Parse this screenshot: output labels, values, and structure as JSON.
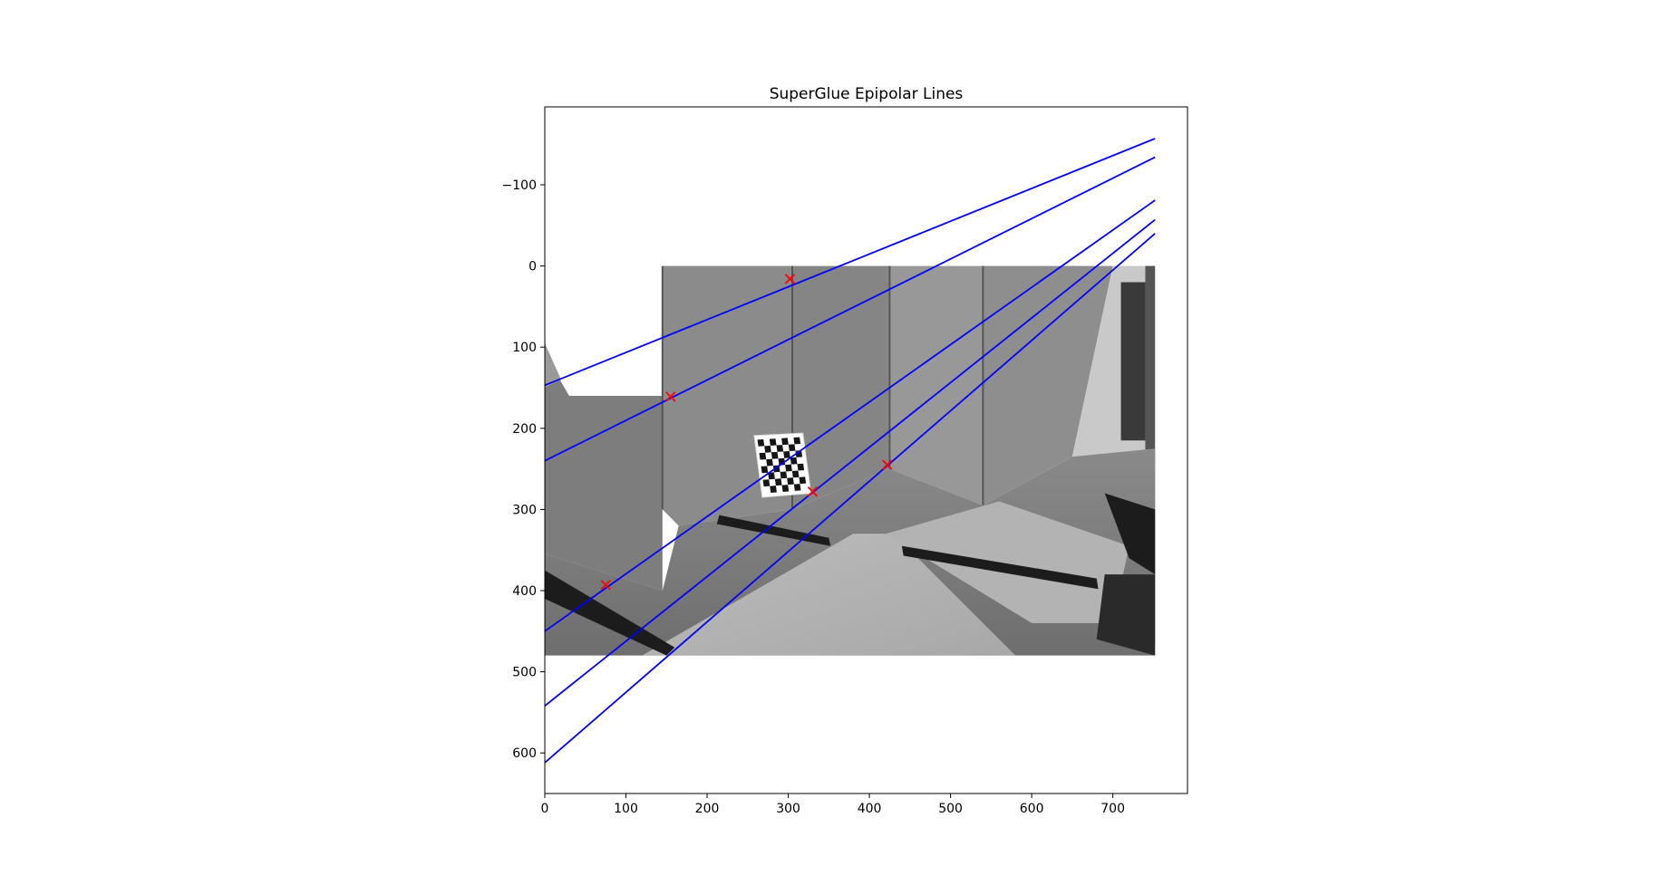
{
  "chart_data": {
    "type": "image_with_lines",
    "title": "SuperGlue Epipolar Lines",
    "xlabel": "",
    "ylabel": "",
    "xlim": [
      0,
      792
    ],
    "ylim": [
      650,
      -196
    ],
    "y_inverted": true,
    "grid": false,
    "x_ticks": [
      0,
      100,
      200,
      300,
      400,
      500,
      600,
      700
    ],
    "x_tick_labels": [
      "0",
      "100",
      "200",
      "300",
      "400",
      "500",
      "600",
      "700"
    ],
    "y_ticks": [
      -100,
      0,
      100,
      200,
      300,
      400,
      500,
      600
    ],
    "y_tick_labels": [
      "−100",
      "0",
      "100",
      "200",
      "300",
      "400",
      "500",
      "600"
    ],
    "background_image": {
      "description": "grayscale indoor photo",
      "extent": {
        "x": [
          0,
          752
        ],
        "y": [
          0,
          480
        ]
      },
      "inset_left_top_corner": {
        "x": 145,
        "y": 0
      }
    },
    "epipolar_lines": {
      "color": "#0000ff",
      "x_range": [
        0,
        752
      ],
      "lines": [
        {
          "y_at_x0": 147,
          "y_at_xmax": -157
        },
        {
          "y_at_x0": 240,
          "y_at_xmax": -134
        },
        {
          "y_at_x0": 450,
          "y_at_xmax": -81
        },
        {
          "y_at_x0": 542,
          "y_at_xmax": -57
        },
        {
          "y_at_x0": 612,
          "y_at_xmax": -40
        }
      ]
    },
    "points": {
      "marker": "x",
      "color": "#ff0000",
      "values": [
        {
          "x": 302,
          "y": 16
        },
        {
          "x": 155,
          "y": 161
        },
        {
          "x": 422,
          "y": 245
        },
        {
          "x": 330,
          "y": 278
        },
        {
          "x": 75,
          "y": 393
        }
      ]
    }
  }
}
